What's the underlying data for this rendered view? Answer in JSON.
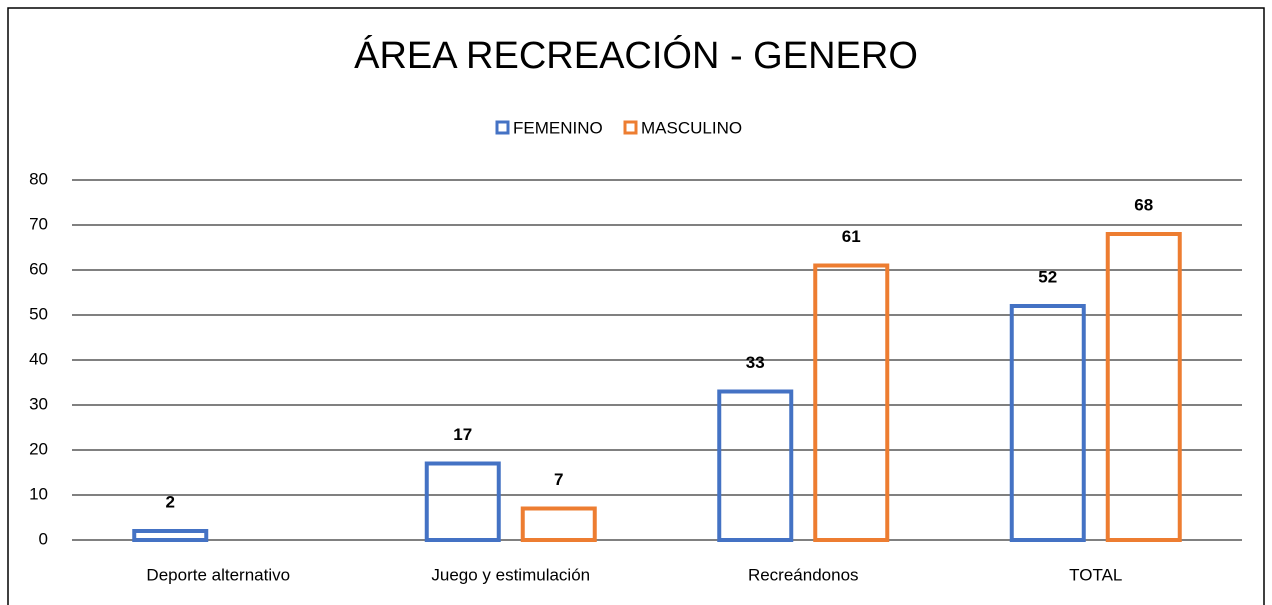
{
  "chart_data": {
    "type": "bar",
    "title": "ÁREA RECREACIÓN - GENERO",
    "categories": [
      "Deporte alternativo",
      "Juego y estimulación",
      "Recreándonos",
      "TOTAL"
    ],
    "series": [
      {
        "name": "FEMENINO",
        "color": "#4472c4",
        "values": [
          2,
          17,
          33,
          52
        ]
      },
      {
        "name": "MASCULINO",
        "color": "#ed7d31",
        "values": [
          null,
          7,
          61,
          68
        ]
      }
    ],
    "ylim": [
      0,
      80
    ],
    "yticks": [
      0,
      10,
      20,
      30,
      40,
      50,
      60,
      70,
      80
    ],
    "grid": true,
    "legend": "top"
  }
}
